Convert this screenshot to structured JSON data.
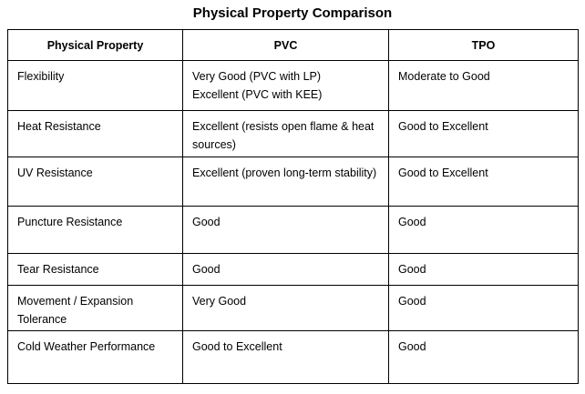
{
  "title": "Physical Property Comparison",
  "table": {
    "headers": [
      "Physical Property",
      "PVC",
      "TPO"
    ],
    "rows": [
      {
        "property": "Flexibility",
        "pvc": "Very Good (PVC with LP)\nExcellent (PVC with KEE)",
        "tpo": "Moderate to Good"
      },
      {
        "property": "Heat Resistance",
        "pvc": "Excellent (resists open flame & heat sources)",
        "tpo": "Good to Excellent"
      },
      {
        "property": "UV Resistance",
        "pvc": "Excellent (proven long-term stability)",
        "tpo": "Good to Excellent"
      },
      {
        "property": "Puncture Resistance",
        "pvc": "Good",
        "tpo": "Good"
      },
      {
        "property": "Tear Resistance",
        "pvc": "Good",
        "tpo": "Good"
      },
      {
        "property": "Movement / Expansion Tolerance",
        "pvc": "Very Good",
        "tpo": "Good"
      },
      {
        "property": "Cold Weather Performance",
        "pvc": "Good to Excellent",
        "tpo": "Good"
      }
    ]
  },
  "colors": {
    "text": "#000000",
    "border": "#000000",
    "background": "#ffffff"
  }
}
